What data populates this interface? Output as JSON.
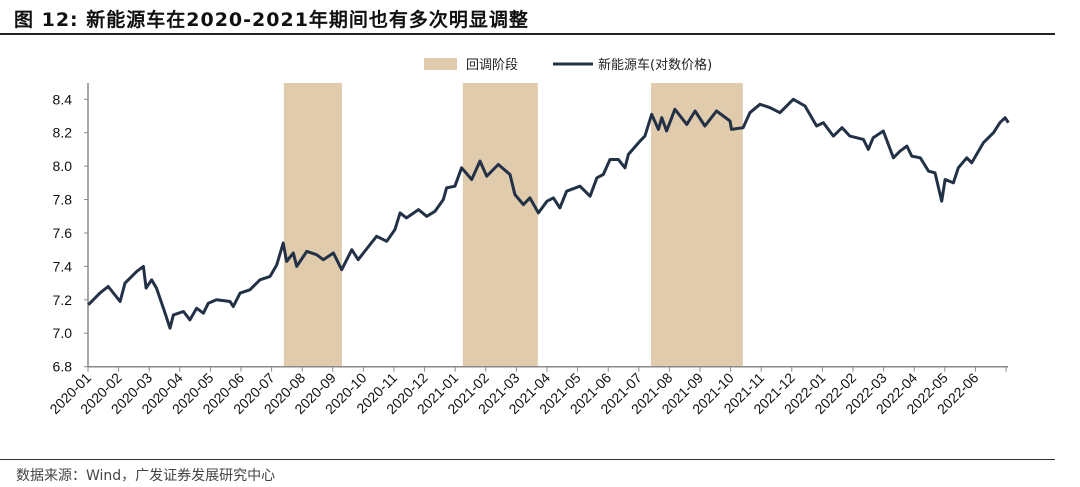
{
  "title": "图 12: 新能源车在2020-2021年期间也有多次明显调整",
  "source": "数据来源：Wind，广发证券发展研究中心",
  "colors": {
    "line": "#233146",
    "shade": "#e0cbad",
    "axis": "#8a8a8a"
  },
  "chart_data": {
    "type": "line",
    "title": "图 12: 新能源车在2020-2021年期间也有多次明显调整",
    "xlabel": "",
    "ylabel": "",
    "x_unit": "months since 2020-01",
    "ylim": [
      6.8,
      8.5
    ],
    "yticks": [
      "6.8",
      "7.0",
      "7.2",
      "7.4",
      "7.6",
      "7.8",
      "8.0",
      "8.2",
      "8.4"
    ],
    "ytick_values": [
      6.8,
      7.0,
      7.2,
      7.4,
      7.6,
      7.8,
      8.0,
      8.2,
      8.4
    ],
    "xticks": [
      "2020-01",
      "2020-02",
      "2020-03",
      "2020-04",
      "2020-05",
      "2020-06",
      "2020-07",
      "2020-08",
      "2020-09",
      "2020-10",
      "2020-11",
      "2020-12",
      "2021-01",
      "2021-02",
      "2021-03",
      "2021-04",
      "2021-05",
      "2021-06",
      "2021-07",
      "2021-08",
      "2021-09",
      "2021-10",
      "2021-11",
      "2021-12",
      "2022-01",
      "2022-02",
      "2022-03",
      "2022-04",
      "2022-05",
      "2022-06"
    ],
    "legend": {
      "placement": "top-center",
      "entries": [
        "回调阶段",
        "新能源车(对数价格)"
      ]
    },
    "grid": false,
    "shaded_ranges": [
      [
        6.4,
        8.3
      ],
      [
        12.25,
        14.7
      ],
      [
        18.4,
        21.4
      ]
    ],
    "series": [
      {
        "name": "新能源车(对数价格)",
        "x": [
          0.01,
          0.39,
          0.66,
          1.05,
          1.21,
          1.59,
          1.81,
          1.9,
          2.08,
          2.24,
          2.52,
          2.68,
          2.79,
          3.12,
          3.33,
          3.55,
          3.77,
          3.93,
          4.2,
          4.64,
          4.75,
          4.97,
          5.29,
          5.62,
          5.95,
          6.17,
          6.38,
          6.49,
          6.71,
          6.82,
          7.15,
          7.47,
          7.69,
          8.02,
          8.29,
          8.62,
          8.83,
          9.0,
          9.43,
          9.76,
          10.03,
          10.2,
          10.41,
          10.8,
          11.07,
          11.34,
          11.61,
          11.72,
          11.99,
          12.21,
          12.54,
          12.81,
          13.03,
          13.41,
          13.79,
          13.95,
          14.23,
          14.44,
          14.72,
          15.0,
          15.21,
          15.42,
          15.64,
          16.08,
          16.41,
          16.63,
          16.84,
          17.06,
          17.33,
          17.55,
          17.66,
          18.04,
          18.2,
          18.42,
          18.64,
          18.75,
          18.91,
          19.18,
          19.57,
          19.84,
          20.16,
          20.54,
          20.98,
          21.03,
          21.41,
          21.63,
          21.96,
          22.29,
          22.61,
          23.05,
          23.43,
          23.81,
          24.03,
          24.36,
          24.64,
          24.9,
          25.34,
          25.5,
          25.66,
          25.99,
          26.32,
          26.54,
          26.76,
          26.92,
          27.2,
          27.47,
          27.68,
          27.9,
          28.01,
          28.28,
          28.44,
          28.72,
          28.88,
          29.26,
          29.59,
          29.8,
          29.97,
          30.08
        ],
        "values": [
          7.17,
          7.24,
          7.28,
          7.19,
          7.3,
          7.37,
          7.4,
          7.27,
          7.32,
          7.27,
          7.12,
          7.03,
          7.11,
          7.13,
          7.08,
          7.15,
          7.12,
          7.18,
          7.2,
          7.19,
          7.16,
          7.24,
          7.26,
          7.32,
          7.34,
          7.41,
          7.54,
          7.43,
          7.48,
          7.4,
          7.49,
          7.47,
          7.44,
          7.48,
          7.38,
          7.5,
          7.44,
          7.48,
          7.58,
          7.55,
          7.62,
          7.72,
          7.69,
          7.74,
          7.7,
          7.73,
          7.8,
          7.87,
          7.88,
          7.99,
          7.92,
          8.03,
          7.94,
          8.01,
          7.95,
          7.83,
          7.77,
          7.81,
          7.72,
          7.79,
          7.81,
          7.75,
          7.85,
          7.88,
          7.82,
          7.93,
          7.95,
          8.04,
          8.04,
          7.99,
          8.07,
          8.15,
          8.18,
          8.31,
          8.22,
          8.29,
          8.21,
          8.34,
          8.25,
          8.33,
          8.24,
          8.33,
          8.27,
          8.22,
          8.23,
          8.32,
          8.37,
          8.35,
          8.32,
          8.4,
          8.36,
          8.24,
          8.26,
          8.18,
          8.23,
          8.18,
          8.16,
          8.1,
          8.17,
          8.21,
          8.05,
          8.09,
          8.12,
          8.06,
          8.05,
          7.97,
          7.96,
          7.79,
          7.92,
          7.9,
          7.99,
          8.05,
          8.02,
          8.14,
          8.2,
          8.26,
          8.29,
          8.26
        ]
      }
    ]
  }
}
